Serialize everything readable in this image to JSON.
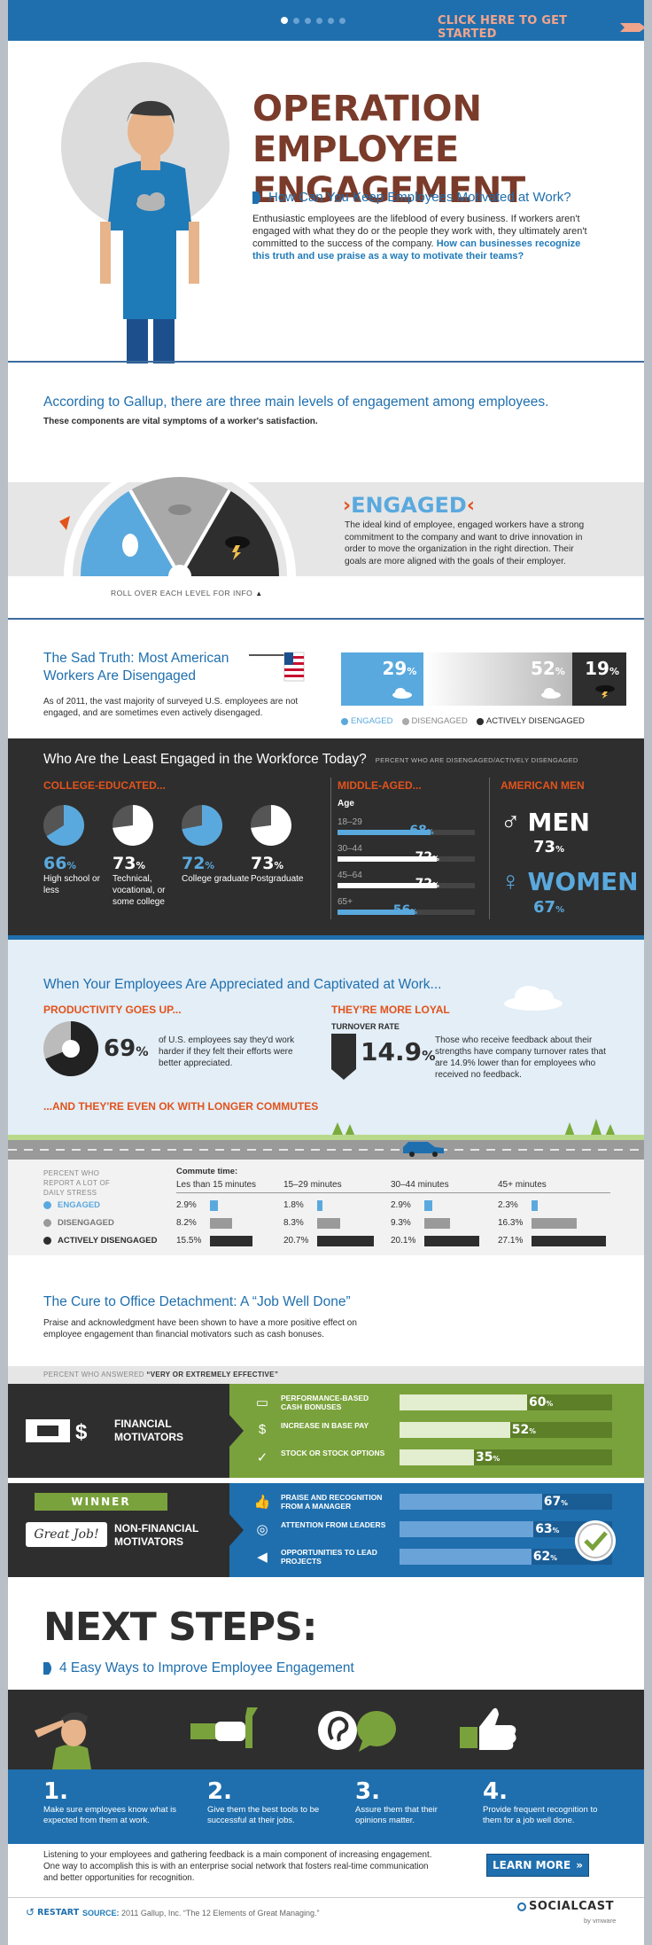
{
  "header": {
    "cta": "CLICK HERE TO GET STARTED"
  },
  "hero": {
    "title_l1": "OPERATION",
    "title_l2": "EMPLOYEE ENGAGEMENT",
    "subtitle": "How Can You Keep Employees Motivated at Work?",
    "body": "Enthusiastic employees are the lifeblood of every business. If workers aren't engaged with what they do or the people they work with, they ultimately aren't committed to the success of the company.",
    "body_link": "How can businesses recognize this truth and use praise as a way to motivate their teams?"
  },
  "levels": {
    "heading": "According to Gallup, there are three main levels of engagement among employees.",
    "subheading": "These components are vital symptoms of a worker's satisfaction.",
    "selected_title": "ENGAGED",
    "selected_desc": "The ideal kind of employee, engaged workers have a strong commitment to the company and want to drive innovation in order to move the organization in the right direction. Their goals are more aligned with the goals of their employer.",
    "rollover": "ROLL OVER EACH LEVEL FOR INFO"
  },
  "sad_truth": {
    "title": "The Sad Truth: Most American Workers Are Disengaged",
    "body": "As of 2011, the vast majority of surveyed U.S. employees are not engaged, and are sometimes even actively disengaged.",
    "engaged_pct": "29",
    "disengaged_pct": "52",
    "active_pct": "19",
    "engaged_frac": 0.29,
    "disengaged_frac": 0.52,
    "active_frac": 0.19,
    "legend": [
      "ENGAGED",
      "DISENGAGED",
      "ACTIVELY DISENGAGED"
    ]
  },
  "least": {
    "title": "Who Are the Least Engaged in the Workforce Today?",
    "note": "PERCENT WHO ARE DISENGAGED/ACTIVELY DISENGAGED",
    "college_title": "COLLEGE-EDUCATED...",
    "college": [
      {
        "pct": "66",
        "label": "High school or less",
        "frac": 0.66,
        "color": "#5aa9de"
      },
      {
        "pct": "73",
        "label": "Technical, vocational, or some college",
        "frac": 0.73,
        "color": "#ffffff"
      },
      {
        "pct": "72",
        "label": "College graduate",
        "frac": 0.72,
        "color": "#5aa9de"
      },
      {
        "pct": "73",
        "label": "Postgraduate",
        "frac": 0.73,
        "color": "#ffffff"
      }
    ],
    "middle_title": "MIDDLE-AGED...",
    "age_label": "Age",
    "ages": [
      {
        "label": "18–29",
        "pct": "68",
        "frac": 0.68,
        "color": "#5aa9de"
      },
      {
        "label": "30–44",
        "pct": "72",
        "frac": 0.72,
        "color": "#ffffff"
      },
      {
        "label": "45–64",
        "pct": "72",
        "frac": 0.72,
        "color": "#ffffff"
      },
      {
        "label": "65+",
        "pct": "56",
        "frac": 0.56,
        "color": "#5aa9de"
      }
    ],
    "men_title": "AMERICAN MEN",
    "men": "MEN",
    "men_pct": "73",
    "women": "WOMEN",
    "women_pct": "67"
  },
  "appreciated": {
    "title": "When Your Employees Are Appreciated and Captivated at Work...",
    "prod_title": "PRODUCTIVITY GOES UP...",
    "prod_pct": "69",
    "prod_frac": 0.69,
    "prod_text": "of U.S. employees say they'd work harder if they felt their efforts were better appreciated.",
    "loyal_title": "THEY'RE MORE LOYAL",
    "turnover_label": "TURNOVER RATE",
    "turnover_pct": "14.9",
    "loyal_text": "Those who receive feedback about their strengths have company turnover rates that are 14.9% lower than for employees who received no feedback.",
    "commute_title": "...AND THEY'RE EVEN OK WITH LONGER COMMUTES"
  },
  "commute": {
    "row_head": "PERCENT WHO REPORT A LOT OF DAILY STRESS",
    "commute_label": "Commute time:",
    "cols": [
      "Les than 15 minutes",
      "15–29 minutes",
      "30–44 minutes",
      "45+ minutes"
    ],
    "rows": [
      {
        "label": "ENGAGED",
        "color": "#5aa9de",
        "values": [
          "2.9%",
          "1.8%",
          "2.9%",
          "2.3%"
        ],
        "nums": [
          2.9,
          1.8,
          2.9,
          2.3
        ]
      },
      {
        "label": "DISENGAGED",
        "color": "#9a9a9a",
        "values": [
          "8.2%",
          "8.3%",
          "9.3%",
          "16.3%"
        ],
        "nums": [
          8.2,
          8.3,
          9.3,
          16.3
        ]
      },
      {
        "label": "ACTIVELY DISENGAGED",
        "color": "#2e2e2e",
        "values": [
          "15.5%",
          "20.7%",
          "20.1%",
          "27.1%"
        ],
        "nums": [
          15.5,
          20.7,
          20.1,
          27.1
        ]
      }
    ]
  },
  "cure": {
    "title": "The Cure to Office Detachment: A “Job Well Done”",
    "body": "Praise and acknowledgment have been shown to have a more positive effect on employee engagement than financial motivators such as cash bonuses.",
    "note_pre": "PERCENT WHO ANSWERED ",
    "note_em": "“VERY OR EXTREMELY EFFECTIVE”",
    "financial_label": "FINANCIAL MOTIVATORS",
    "financial": [
      {
        "label": "PERFORMANCE-BASED CASH BONUSES",
        "pct": "60",
        "frac": 0.6
      },
      {
        "label": "INCREASE IN BASE PAY",
        "pct": "52",
        "frac": 0.52
      },
      {
        "label": "STOCK OR STOCK OPTIONS",
        "pct": "35",
        "frac": 0.35
      }
    ],
    "winner": "WINNER",
    "great_job": "Great Job!",
    "nonfin_label": "NON-FINANCIAL MOTIVATORS",
    "nonfinancial": [
      {
        "label": "PRAISE AND RECOGNITION FROM A MANAGER",
        "pct": "67",
        "frac": 0.67
      },
      {
        "label": "ATTENTION FROM LEADERS",
        "pct": "63",
        "frac": 0.63
      },
      {
        "label": "OPPORTUNITIES TO LEAD PROJECTS",
        "pct": "62",
        "frac": 0.62
      }
    ]
  },
  "next": {
    "title": "NEXT STEPS:",
    "subtitle": "4 Easy Ways to Improve Employee Engagement",
    "steps": [
      {
        "num": "1.",
        "text": "Make sure employees know what is expected from them at work."
      },
      {
        "num": "2.",
        "text": "Give them the best tools to be successful at their jobs."
      },
      {
        "num": "3.",
        "text": "Assure them that their opinions matter."
      },
      {
        "num": "4.",
        "text": "Provide frequent recognition to them for a job well done."
      }
    ],
    "closing": "Listening to your employees and gathering feedback is a main component of increasing engagement. One way to accomplish this is with an enterprise social network that fosters real-time communication and better opportunities for recognition.",
    "learn_more": "LEARN MORE"
  },
  "footer": {
    "restart": "RESTART",
    "source_label": "SOURCE:",
    "source": "2011 Gallup, Inc. “The 12 Elements of Great Managing.”",
    "brand": "SOCIALCAST",
    "brand_by": "by vmware"
  }
}
